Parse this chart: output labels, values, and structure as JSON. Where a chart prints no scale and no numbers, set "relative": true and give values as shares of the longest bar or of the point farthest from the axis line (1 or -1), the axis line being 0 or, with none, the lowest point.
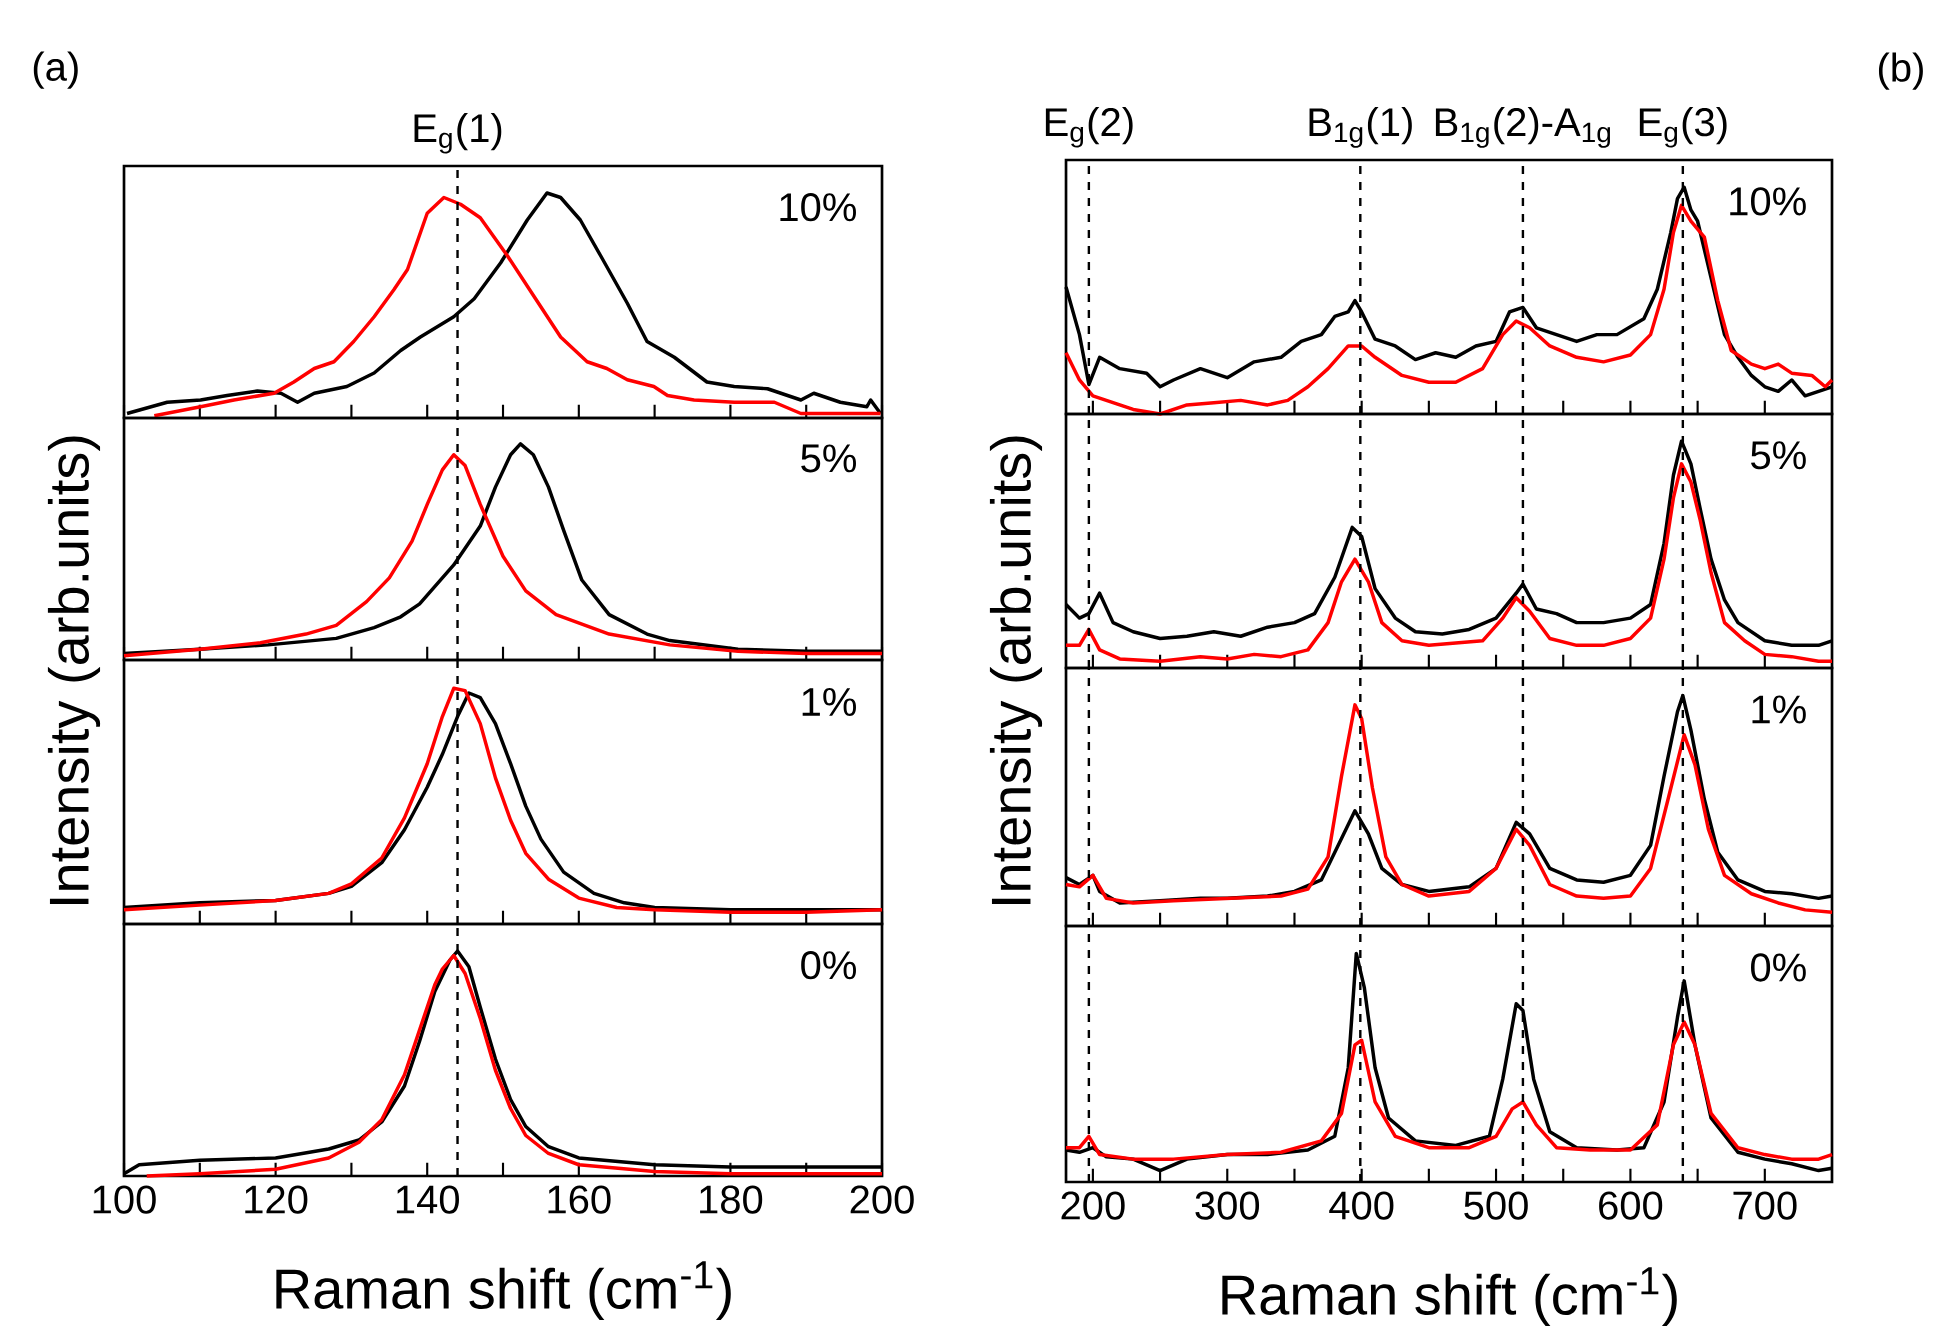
{
  "chart_data": [
    {
      "type": "line",
      "relative": true,
      "xlim": [
        100,
        200
      ],
      "xticks": [
        100,
        {
          "value": 110,
          "label": null
        },
        120,
        {
          "value": 130,
          "label": null
        },
        140,
        {
          "value": 150,
          "label": null
        },
        160,
        {
          "value": 170,
          "label": null
        },
        180,
        {
          "value": 190,
          "label": null
        },
        200
      ],
      "tick_labels": false,
      "ylabel": "Intensity (arb.units)",
      "annotations": [
        "10%",
        "(a)"
      ],
      "ref_lines": [
        {
          "axis": "x",
          "value": 144,
          "label": "E$_{g}$(1)",
          "line_style": "dashed",
          "color": "#000000"
        }
      ],
      "series": [
        {
          "color": "#000000",
          "x": [
            100.4,
            105.7,
            110.1,
            113.6,
            117.6,
            120.7,
            122.9,
            125.1,
            129.4,
            133.0,
            136.5,
            139.1,
            143.5,
            146.2,
            149.7,
            153.2,
            155.8,
            157.6,
            160.2,
            162.9,
            166.4,
            169.0,
            172.6,
            176.9,
            180.5,
            184.9,
            189.3,
            191.0,
            194.5,
            198.0,
            198.5,
            199.8
          ],
          "values": [
            0.02,
            0.07,
            0.08,
            0.1,
            0.12,
            0.11,
            0.07,
            0.11,
            0.14,
            0.2,
            0.3,
            0.36,
            0.45,
            0.53,
            0.69,
            0.88,
            1.0,
            0.98,
            0.88,
            0.72,
            0.51,
            0.34,
            0.27,
            0.16,
            0.14,
            0.13,
            0.08,
            0.11,
            0.07,
            0.05,
            0.08,
            0.02
          ]
        },
        {
          "color": "#ff0000",
          "x": [
            104.0,
            110.1,
            114.5,
            119.8,
            122.4,
            125.1,
            127.7,
            130.3,
            133.0,
            135.6,
            137.4,
            140.0,
            142.2,
            144.4,
            147.0,
            150.6,
            154.1,
            157.6,
            161.1,
            163.7,
            166.4,
            169.9,
            171.7,
            175.2,
            180.5,
            185.8,
            189.3,
            194.5,
            199.8
          ],
          "values": [
            0.01,
            0.05,
            0.08,
            0.11,
            0.16,
            0.22,
            0.25,
            0.34,
            0.45,
            0.57,
            0.66,
            0.91,
            0.98,
            0.95,
            0.89,
            0.72,
            0.54,
            0.36,
            0.25,
            0.22,
            0.17,
            0.14,
            0.1,
            0.08,
            0.07,
            0.07,
            0.02,
            0.02,
            0.02
          ]
        }
      ]
    },
    {
      "type": "line",
      "relative": true,
      "xlim": [
        100,
        200
      ],
      "xticks": [
        100,
        {
          "value": 110,
          "label": null
        },
        120,
        {
          "value": 130,
          "label": null
        },
        140,
        {
          "value": 150,
          "label": null
        },
        160,
        {
          "value": 170,
          "label": null
        },
        180,
        {
          "value": 190,
          "label": null
        },
        200
      ],
      "tick_labels": false,
      "annotations": [
        "5%"
      ],
      "ref_lines": [
        {
          "axis": "x",
          "value": 144,
          "line_style": "dashed",
          "color": "#000000"
        }
      ],
      "series": [
        {
          "color": "#000000",
          "x": [
            100,
            110,
            119,
            128,
            133,
            136.5,
            139,
            143.5,
            147,
            149,
            151,
            152.3,
            154,
            156,
            158,
            160.4,
            164,
            169,
            172,
            181,
            190,
            200
          ],
          "values": [
            0.03,
            0.05,
            0.07,
            0.1,
            0.15,
            0.2,
            0.26,
            0.44,
            0.62,
            0.8,
            0.95,
            1.0,
            0.95,
            0.8,
            0.6,
            0.37,
            0.21,
            0.12,
            0.09,
            0.05,
            0.04,
            0.04
          ]
        },
        {
          "color": "#ff0000",
          "x": [
            100,
            110,
            118,
            124,
            128,
            132,
            135,
            138,
            140,
            142,
            143.5,
            145,
            147,
            150,
            153,
            157,
            164,
            172,
            181,
            190,
            200
          ],
          "values": [
            0.02,
            0.05,
            0.08,
            0.12,
            0.16,
            0.27,
            0.38,
            0.55,
            0.72,
            0.88,
            0.95,
            0.9,
            0.72,
            0.48,
            0.32,
            0.21,
            0.12,
            0.07,
            0.04,
            0.03,
            0.03
          ]
        }
      ]
    },
    {
      "type": "line",
      "relative": true,
      "xlim": [
        100,
        200
      ],
      "xticks": [
        100,
        {
          "value": 110,
          "label": null
        },
        120,
        {
          "value": 130,
          "label": null
        },
        140,
        {
          "value": 150,
          "label": null
        },
        160,
        {
          "value": 170,
          "label": null
        },
        180,
        {
          "value": 190,
          "label": null
        },
        200
      ],
      "tick_labels": false,
      "annotations": [
        "1%"
      ],
      "ref_lines": [
        {
          "axis": "x",
          "value": 144,
          "line_style": "dashed",
          "color": "#000000"
        }
      ],
      "series": [
        {
          "color": "#000000",
          "x": [
            100,
            110,
            120,
            127,
            130,
            134,
            137,
            140,
            142,
            144,
            145.5,
            147,
            149,
            151,
            153,
            155,
            158,
            162,
            166,
            170,
            180,
            190,
            200
          ],
          "values": [
            0.07,
            0.09,
            0.1,
            0.13,
            0.16,
            0.26,
            0.4,
            0.58,
            0.72,
            0.88,
            0.98,
            0.96,
            0.85,
            0.68,
            0.5,
            0.36,
            0.22,
            0.13,
            0.09,
            0.07,
            0.06,
            0.06,
            0.06
          ]
        },
        {
          "color": "#ff0000",
          "x": [
            100,
            110,
            120,
            127,
            130,
            134,
            137,
            140,
            142,
            143.5,
            145,
            147,
            149,
            151,
            153,
            156,
            160,
            165,
            170,
            180,
            190,
            200
          ],
          "values": [
            0.06,
            0.08,
            0.1,
            0.13,
            0.17,
            0.28,
            0.45,
            0.68,
            0.88,
            1.0,
            0.99,
            0.85,
            0.62,
            0.44,
            0.3,
            0.19,
            0.11,
            0.07,
            0.06,
            0.05,
            0.05,
            0.06
          ]
        }
      ]
    },
    {
      "type": "line",
      "relative": true,
      "xlim": [
        100,
        200
      ],
      "xticks": [
        100,
        {
          "value": 110,
          "label": null
        },
        120,
        {
          "value": 130,
          "label": null
        },
        140,
        {
          "value": 150,
          "label": null
        },
        160,
        {
          "value": 170,
          "label": null
        },
        180,
        {
          "value": 190,
          "label": null
        },
        200
      ],
      "tick_labels": "x",
      "xlabel": "Raman shift (cm$^{-1}$)",
      "annotations": [
        "0%"
      ],
      "ref_lines": [
        {
          "axis": "x",
          "value": 144,
          "line_style": "dashed",
          "color": "#000000"
        }
      ],
      "series": [
        {
          "color": "#000000",
          "x": [
            100,
            102,
            110,
            120,
            127,
            131,
            134,
            137,
            139,
            141,
            143,
            144,
            145.5,
            147,
            149,
            151,
            153,
            156,
            160,
            170,
            180,
            190,
            200
          ],
          "values": [
            0.01,
            0.05,
            0.07,
            0.08,
            0.12,
            0.16,
            0.24,
            0.4,
            0.6,
            0.82,
            0.96,
            1.0,
            0.93,
            0.75,
            0.52,
            0.34,
            0.22,
            0.13,
            0.08,
            0.05,
            0.04,
            0.04,
            0.04
          ]
        },
        {
          "color": "#ff0000",
          "x": [
            103,
            110,
            120,
            127,
            131,
            134,
            137,
            139,
            141,
            142,
            143.5,
            145,
            147,
            149,
            151,
            153,
            156,
            160,
            170,
            180,
            190,
            200
          ],
          "values": [
            0.0,
            0.01,
            0.03,
            0.08,
            0.15,
            0.25,
            0.45,
            0.65,
            0.85,
            0.92,
            0.98,
            0.9,
            0.7,
            0.47,
            0.3,
            0.18,
            0.1,
            0.05,
            0.02,
            0.01,
            0.01,
            0.01
          ]
        }
      ]
    },
    {
      "type": "line",
      "relative": true,
      "xlim": [
        180,
        750
      ],
      "xticks": [
        200,
        {
          "value": 250,
          "label": null
        },
        300,
        {
          "value": 350,
          "label": null
        },
        400,
        {
          "value": 450,
          "label": null
        },
        500,
        {
          "value": 550,
          "label": null
        },
        600,
        {
          "value": 650,
          "label": null
        },
        700
      ],
      "tick_labels": false,
      "ylabel": "Intensity (arb.units)",
      "annotations": [
        "10%",
        "(b)"
      ],
      "ref_lines": [
        {
          "axis": "x",
          "value": 197,
          "label": "E$_{g}$(2)",
          "line_style": "dashed",
          "color": "#000000"
        },
        {
          "axis": "x",
          "value": 399,
          "label": "B$_{1g}$(1)",
          "line_style": "dashed",
          "color": "#000000"
        },
        {
          "axis": "x",
          "value": 520,
          "label": "B$_{1g}$(2)-A$_{1g}$",
          "line_style": "dashed",
          "color": "#000000"
        },
        {
          "axis": "x",
          "value": 639,
          "label": "E$_{g}$(3)",
          "line_style": "dashed",
          "color": "#000000"
        }
      ],
      "series": [
        {
          "color": "#000000",
          "x": [
            180,
            190,
            197,
            205,
            220,
            240,
            250,
            260,
            280,
            300,
            320,
            340,
            355,
            370,
            380,
            390,
            395,
            400,
            410,
            425,
            440,
            455,
            470,
            485,
            500,
            510,
            520,
            530,
            545,
            560,
            575,
            590,
            610,
            620,
            630,
            635,
            640,
            645,
            650,
            660,
            670,
            680,
            690,
            700,
            710,
            720,
            730,
            740,
            750
          ],
          "values": [
            0.56,
            0.35,
            0.13,
            0.25,
            0.2,
            0.18,
            0.12,
            0.15,
            0.2,
            0.16,
            0.23,
            0.25,
            0.32,
            0.35,
            0.43,
            0.45,
            0.5,
            0.45,
            0.33,
            0.3,
            0.24,
            0.27,
            0.25,
            0.3,
            0.32,
            0.45,
            0.47,
            0.38,
            0.35,
            0.32,
            0.35,
            0.35,
            0.42,
            0.55,
            0.8,
            0.95,
            1.0,
            0.9,
            0.85,
            0.6,
            0.35,
            0.25,
            0.17,
            0.12,
            0.1,
            0.15,
            0.08,
            0.1,
            0.12
          ]
        },
        {
          "color": "#ff0000",
          "x": [
            180,
            190,
            200,
            210,
            230,
            250,
            270,
            290,
            310,
            330,
            345,
            360,
            375,
            390,
            400,
            410,
            430,
            450,
            470,
            490,
            505,
            515,
            525,
            540,
            560,
            580,
            600,
            615,
            625,
            632,
            638,
            645,
            655,
            665,
            675,
            690,
            700,
            710,
            720,
            735,
            745,
            750
          ],
          "values": [
            0.27,
            0.15,
            0.08,
            0.06,
            0.02,
            0.0,
            0.04,
            0.05,
            0.06,
            0.04,
            0.06,
            0.12,
            0.2,
            0.3,
            0.3,
            0.25,
            0.17,
            0.14,
            0.14,
            0.2,
            0.35,
            0.41,
            0.38,
            0.3,
            0.25,
            0.23,
            0.26,
            0.35,
            0.55,
            0.8,
            0.92,
            0.85,
            0.78,
            0.5,
            0.28,
            0.22,
            0.2,
            0.22,
            0.18,
            0.17,
            0.12,
            0.15
          ]
        }
      ]
    },
    {
      "type": "line",
      "relative": true,
      "xlim": [
        180,
        750
      ],
      "xticks": [
        200,
        {
          "value": 250,
          "label": null
        },
        300,
        {
          "value": 350,
          "label": null
        },
        400,
        {
          "value": 450,
          "label": null
        },
        500,
        {
          "value": 550,
          "label": null
        },
        600,
        {
          "value": 650,
          "label": null
        },
        700
      ],
      "tick_labels": false,
      "annotations": [
        "5%"
      ],
      "ref_lines": [
        {
          "axis": "x",
          "value": 197,
          "line_style": "dashed",
          "color": "#000000"
        },
        {
          "axis": "x",
          "value": 399,
          "line_style": "dashed",
          "color": "#000000"
        },
        {
          "axis": "x",
          "value": 520,
          "line_style": "dashed",
          "color": "#000000"
        },
        {
          "axis": "x",
          "value": 639,
          "line_style": "dashed",
          "color": "#000000"
        }
      ],
      "series": [
        {
          "color": "#000000",
          "x": [
            180,
            190,
            197,
            205,
            215,
            230,
            250,
            270,
            290,
            310,
            330,
            350,
            365,
            380,
            393,
            400,
            410,
            425,
            440,
            460,
            480,
            500,
            515,
            520,
            530,
            545,
            560,
            580,
            600,
            615,
            625,
            632,
            638,
            645,
            652,
            660,
            670,
            680,
            700,
            720,
            740,
            750
          ],
          "values": [
            0.28,
            0.22,
            0.24,
            0.33,
            0.2,
            0.16,
            0.13,
            0.14,
            0.16,
            0.14,
            0.18,
            0.2,
            0.24,
            0.4,
            0.62,
            0.58,
            0.35,
            0.22,
            0.16,
            0.15,
            0.17,
            0.22,
            0.33,
            0.37,
            0.26,
            0.24,
            0.2,
            0.2,
            0.22,
            0.28,
            0.55,
            0.85,
            1.0,
            0.9,
            0.7,
            0.48,
            0.3,
            0.2,
            0.12,
            0.1,
            0.1,
            0.12
          ]
        },
        {
          "color": "#ff0000",
          "x": [
            180,
            190,
            197,
            205,
            220,
            250,
            280,
            300,
            320,
            340,
            360,
            375,
            385,
            395,
            405,
            415,
            430,
            450,
            470,
            490,
            505,
            515,
            525,
            540,
            560,
            580,
            600,
            615,
            625,
            632,
            638,
            645,
            652,
            660,
            670,
            685,
            700,
            720,
            740,
            750
          ],
          "values": [
            0.1,
            0.1,
            0.17,
            0.08,
            0.04,
            0.03,
            0.05,
            0.04,
            0.06,
            0.05,
            0.08,
            0.2,
            0.38,
            0.48,
            0.38,
            0.2,
            0.12,
            0.1,
            0.11,
            0.12,
            0.22,
            0.31,
            0.25,
            0.13,
            0.1,
            0.1,
            0.13,
            0.22,
            0.48,
            0.75,
            0.9,
            0.82,
            0.65,
            0.42,
            0.2,
            0.12,
            0.06,
            0.05,
            0.03,
            0.03
          ]
        }
      ]
    },
    {
      "type": "line",
      "relative": true,
      "xlim": [
        180,
        750
      ],
      "xticks": [
        200,
        {
          "value": 250,
          "label": null
        },
        300,
        {
          "value": 350,
          "label": null
        },
        400,
        {
          "value": 450,
          "label": null
        },
        500,
        {
          "value": 550,
          "label": null
        },
        600,
        {
          "value": 650,
          "label": null
        },
        700
      ],
      "tick_labels": false,
      "annotations": [
        "1%"
      ],
      "ref_lines": [
        {
          "axis": "x",
          "value": 197,
          "line_style": "dashed",
          "color": "#000000"
        },
        {
          "axis": "x",
          "value": 399,
          "line_style": "dashed",
          "color": "#000000"
        },
        {
          "axis": "x",
          "value": 520,
          "line_style": "dashed",
          "color": "#000000"
        },
        {
          "axis": "x",
          "value": 639,
          "line_style": "dashed",
          "color": "#000000"
        }
      ],
      "series": [
        {
          "color": "#000000",
          "x": [
            180,
            190,
            200,
            205,
            220,
            250,
            280,
            300,
            330,
            350,
            370,
            385,
            395,
            405,
            415,
            430,
            450,
            480,
            500,
            515,
            525,
            540,
            560,
            580,
            600,
            615,
            625,
            635,
            639,
            645,
            655,
            665,
            680,
            700,
            720,
            740,
            750
          ],
          "values": [
            0.21,
            0.18,
            0.22,
            0.15,
            0.1,
            0.11,
            0.12,
            0.12,
            0.13,
            0.15,
            0.2,
            0.38,
            0.5,
            0.4,
            0.25,
            0.18,
            0.15,
            0.17,
            0.25,
            0.45,
            0.4,
            0.25,
            0.2,
            0.19,
            0.22,
            0.35,
            0.65,
            0.93,
            1.0,
            0.85,
            0.55,
            0.32,
            0.2,
            0.15,
            0.14,
            0.12,
            0.13
          ]
        },
        {
          "color": "#ff0000",
          "x": [
            180,
            190,
            200,
            210,
            230,
            260,
            300,
            340,
            360,
            375,
            385,
            395,
            400,
            408,
            418,
            430,
            450,
            480,
            500,
            515,
            525,
            540,
            560,
            580,
            600,
            615,
            628,
            640,
            648,
            658,
            670,
            690,
            710,
            730,
            750
          ],
          "values": [
            0.18,
            0.17,
            0.22,
            0.12,
            0.1,
            0.11,
            0.12,
            0.13,
            0.16,
            0.3,
            0.65,
            0.96,
            0.9,
            0.6,
            0.3,
            0.18,
            0.13,
            0.15,
            0.25,
            0.42,
            0.35,
            0.18,
            0.13,
            0.12,
            0.13,
            0.25,
            0.55,
            0.83,
            0.7,
            0.42,
            0.22,
            0.14,
            0.1,
            0.07,
            0.06
          ]
        }
      ]
    },
    {
      "type": "line",
      "relative": true,
      "xlim": [
        180,
        750
      ],
      "xticks": [
        200,
        {
          "value": 250,
          "label": null
        },
        300,
        {
          "value": 350,
          "label": null
        },
        400,
        {
          "value": 450,
          "label": null
        },
        500,
        {
          "value": 550,
          "label": null
        },
        600,
        {
          "value": 650,
          "label": null
        },
        700
      ],
      "tick_labels": "x",
      "xlabel": "Raman shift (cm$^{-1}$)",
      "annotations": [
        "0%"
      ],
      "ref_lines": [
        {
          "axis": "x",
          "value": 197,
          "line_style": "dashed",
          "color": "#000000"
        },
        {
          "axis": "x",
          "value": 399,
          "line_style": "dashed",
          "color": "#000000"
        },
        {
          "axis": "x",
          "value": 520,
          "line_style": "dashed",
          "color": "#000000"
        },
        {
          "axis": "x",
          "value": 639,
          "line_style": "dashed",
          "color": "#000000"
        }
      ],
      "series": [
        {
          "color": "#000000",
          "x": [
            180,
            190,
            200,
            210,
            230,
            250,
            270,
            300,
            330,
            360,
            380,
            390,
            396,
            402,
            410,
            420,
            440,
            470,
            495,
            505,
            515,
            520,
            528,
            540,
            560,
            590,
            610,
            625,
            635,
            640,
            648,
            660,
            680,
            700,
            720,
            740,
            750
          ],
          "values": [
            0.14,
            0.13,
            0.15,
            0.11,
            0.1,
            0.05,
            0.1,
            0.12,
            0.12,
            0.14,
            0.2,
            0.5,
            1.0,
            0.85,
            0.5,
            0.28,
            0.18,
            0.16,
            0.2,
            0.45,
            0.78,
            0.75,
            0.45,
            0.22,
            0.15,
            0.14,
            0.15,
            0.35,
            0.72,
            0.88,
            0.6,
            0.28,
            0.13,
            0.1,
            0.08,
            0.05,
            0.06
          ]
        },
        {
          "color": "#ff0000",
          "x": [
            180,
            190,
            197,
            205,
            230,
            260,
            300,
            340,
            370,
            385,
            395,
            400,
            410,
            425,
            450,
            480,
            500,
            512,
            520,
            530,
            545,
            570,
            600,
            620,
            632,
            640,
            648,
            660,
            680,
            700,
            720,
            740,
            750
          ],
          "values": [
            0.15,
            0.15,
            0.2,
            0.12,
            0.1,
            0.1,
            0.12,
            0.13,
            0.18,
            0.3,
            0.6,
            0.62,
            0.35,
            0.2,
            0.15,
            0.15,
            0.2,
            0.32,
            0.35,
            0.25,
            0.15,
            0.14,
            0.14,
            0.25,
            0.6,
            0.7,
            0.6,
            0.3,
            0.15,
            0.12,
            0.1,
            0.1,
            0.12
          ]
        }
      ]
    }
  ]
}
